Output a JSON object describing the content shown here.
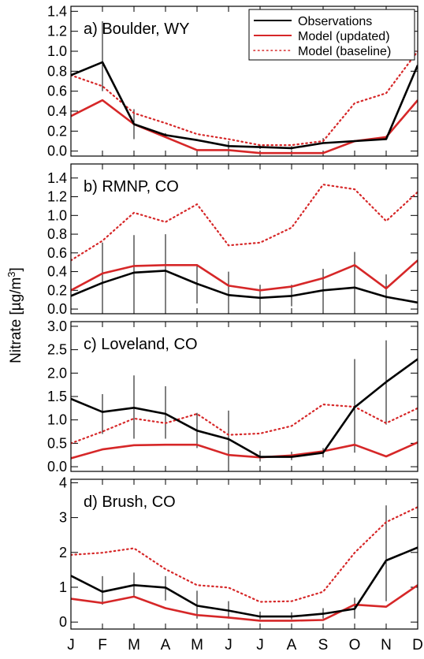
{
  "ylabel_main": "Nitrate [µg/m",
  "ylabel_sup": "3",
  "ylabel_close": "]",
  "months": [
    "J",
    "F",
    "M",
    "A",
    "M",
    "J",
    "J",
    "A",
    "S",
    "O",
    "N",
    "D"
  ],
  "legend": [
    "Observations",
    "Model (updated)",
    "Model (baseline)"
  ],
  "colors": {
    "observations": "#000000",
    "updated": "#d62728",
    "baseline": "#d62728"
  },
  "chart_data": [
    {
      "type": "line",
      "title": "a) Boulder, WY",
      "ylim": [
        -0.05,
        1.45
      ],
      "yticks": [
        0.0,
        0.2,
        0.4,
        0.6,
        0.8,
        1.0,
        1.2,
        1.4
      ],
      "ytick_labels": [
        "0.0",
        "0.2",
        "0.4",
        "0.6",
        "0.8",
        "1.0",
        "1.2",
        "1.4"
      ],
      "legend": "top-right",
      "series": [
        {
          "name": "Observations",
          "style": "solid",
          "values": [
            0.76,
            0.89,
            0.27,
            0.16,
            0.11,
            0.05,
            0.04,
            0.03,
            0.08,
            0.1,
            0.12,
            0.86
          ]
        },
        {
          "name": "Model (updated)",
          "style": "solid",
          "values": [
            0.35,
            0.51,
            0.27,
            0.14,
            0.01,
            0.01,
            -0.02,
            -0.02,
            -0.02,
            0.1,
            0.14,
            0.51
          ]
        },
        {
          "name": "Model (baseline)",
          "style": "dotted",
          "values": [
            0.76,
            0.65,
            0.38,
            0.28,
            0.17,
            0.12,
            0.06,
            0.06,
            0.1,
            0.48,
            0.58,
            1.0
          ]
        }
      ],
      "error_bars": [
        {
          "low": 0.54,
          "high": 1.08
        },
        {
          "low": 0.6,
          "high": 1.3
        },
        {
          "low": 0.12,
          "high": 0.42
        },
        {
          "low": 0.14,
          "high": 0.18
        },
        {
          "low": 0.11,
          "high": 0.11
        },
        {
          "low": 0.0,
          "high": 0.1
        },
        {
          "low": 0.02,
          "high": 0.06
        },
        {
          "low": 0.01,
          "high": 0.05
        },
        {
          "low": 0.08,
          "high": 0.13
        },
        {
          "low": 0.1,
          "high": 0.1
        },
        {
          "low": 0.12,
          "high": 0.12
        },
        {
          "low": 0.7,
          "high": 1.0
        }
      ]
    },
    {
      "type": "line",
      "title": "b) RMNP, CO",
      "ylim": [
        -0.05,
        1.55
      ],
      "yticks": [
        0.0,
        0.2,
        0.4,
        0.6,
        0.8,
        1.0,
        1.2,
        1.4
      ],
      "ytick_labels": [
        "0.0",
        "0.2",
        "0.4",
        "0.6",
        "0.8",
        "1.0",
        "1.2",
        "1.4"
      ],
      "series": [
        {
          "name": "Observations",
          "style": "solid",
          "values": [
            0.14,
            0.28,
            0.39,
            0.41,
            0.27,
            0.15,
            0.12,
            0.14,
            0.2,
            0.23,
            0.13,
            0.07
          ]
        },
        {
          "name": "Model (updated)",
          "style": "solid",
          "values": [
            0.2,
            0.38,
            0.46,
            0.47,
            0.47,
            0.25,
            0.2,
            0.24,
            0.33,
            0.47,
            0.22,
            0.52
          ]
        },
        {
          "name": "Model (baseline)",
          "style": "dotted",
          "values": [
            0.52,
            0.73,
            1.03,
            0.93,
            1.12,
            0.68,
            0.71,
            0.87,
            1.33,
            1.28,
            0.94,
            1.25
          ]
        }
      ],
      "error_bars": [
        {
          "low": 0.14,
          "high": 0.14
        },
        {
          "low": 0.0,
          "high": 0.71
        },
        {
          "low": 0.0,
          "high": 0.79
        },
        {
          "low": 0.0,
          "high": 0.8
        },
        {
          "low": 0.06,
          "high": 0.48
        },
        {
          "low": 0.0,
          "high": 0.4
        },
        {
          "low": 0.0,
          "high": 0.26
        },
        {
          "low": 0.03,
          "high": 0.26
        },
        {
          "low": 0.0,
          "high": 0.43
        },
        {
          "low": 0.0,
          "high": 0.61
        },
        {
          "low": 0.0,
          "high": 0.37
        },
        {
          "low": 0.07,
          "high": 0.07
        }
      ]
    },
    {
      "type": "line",
      "title": "c) Loveland, CO",
      "ylim": [
        -0.1,
        3.1
      ],
      "yticks": [
        0.0,
        0.5,
        1.0,
        1.5,
        2.0,
        2.5,
        3.0
      ],
      "ytick_labels": [
        "0.0",
        "0.5",
        "1.0",
        "1.5",
        "2.0",
        "2.5",
        "3.0"
      ],
      "series": [
        {
          "name": "Observations",
          "style": "solid",
          "values": [
            1.45,
            1.17,
            1.26,
            1.13,
            0.77,
            0.59,
            0.21,
            0.21,
            0.3,
            1.27,
            1.81,
            2.3
          ]
        },
        {
          "name": "Model (updated)",
          "style": "solid",
          "values": [
            0.18,
            0.37,
            0.46,
            0.47,
            0.47,
            0.25,
            0.2,
            0.24,
            0.33,
            0.47,
            0.22,
            0.52
          ]
        },
        {
          "name": "Model (baseline)",
          "style": "dotted",
          "values": [
            0.5,
            0.75,
            1.03,
            0.93,
            1.13,
            0.68,
            0.71,
            0.87,
            1.33,
            1.28,
            0.93,
            1.25
          ]
        }
      ],
      "error_bars": [
        {
          "low": 1.45,
          "high": 1.45
        },
        {
          "low": 0.7,
          "high": 1.55
        },
        {
          "low": 0.6,
          "high": 1.95
        },
        {
          "low": 0.6,
          "high": 1.72
        },
        {
          "low": 0.4,
          "high": 1.15
        },
        {
          "low": 0.0,
          "high": 1.2
        },
        {
          "low": 0.11,
          "high": 0.34
        },
        {
          "low": 0.14,
          "high": 0.32
        },
        {
          "low": 0.2,
          "high": 0.4
        },
        {
          "low": 0.3,
          "high": 2.3
        },
        {
          "low": 0.9,
          "high": 2.7
        },
        {
          "low": 2.3,
          "high": 2.3
        }
      ]
    },
    {
      "type": "line",
      "title": "d) Brush, CO",
      "ylim": [
        -0.2,
        4.1
      ],
      "yticks": [
        0,
        1,
        2,
        3,
        4
      ],
      "ytick_labels": [
        "0",
        "1",
        "2",
        "3",
        "4"
      ],
      "series": [
        {
          "name": "Observations",
          "style": "solid",
          "values": [
            1.33,
            0.87,
            1.06,
            0.99,
            0.47,
            0.33,
            0.16,
            0.16,
            0.24,
            0.38,
            1.77,
            2.14
          ]
        },
        {
          "name": "Model (updated)",
          "style": "solid",
          "values": [
            0.67,
            0.55,
            0.73,
            0.4,
            0.2,
            0.13,
            0.04,
            0.04,
            0.06,
            0.5,
            0.44,
            1.06
          ]
        },
        {
          "name": "Model (baseline)",
          "style": "dotted",
          "values": [
            1.93,
            1.99,
            2.12,
            1.52,
            1.06,
            0.99,
            0.58,
            0.6,
            0.87,
            1.99,
            2.87,
            3.3
          ]
        }
      ],
      "error_bars": [
        {
          "low": 1.33,
          "high": 1.33
        },
        {
          "low": 0.5,
          "high": 1.32
        },
        {
          "low": 0.72,
          "high": 1.42
        },
        {
          "low": 0.62,
          "high": 1.32
        },
        {
          "low": 0.1,
          "high": 0.9
        },
        {
          "low": 0.1,
          "high": 0.6
        },
        {
          "low": 0.08,
          "high": 0.3
        },
        {
          "low": 0.08,
          "high": 0.28
        },
        {
          "low": 0.1,
          "high": 0.4
        },
        {
          "low": 0.1,
          "high": 0.7
        },
        {
          "low": 0.6,
          "high": 3.35
        },
        {
          "low": 2.14,
          "high": 2.14
        }
      ]
    }
  ]
}
